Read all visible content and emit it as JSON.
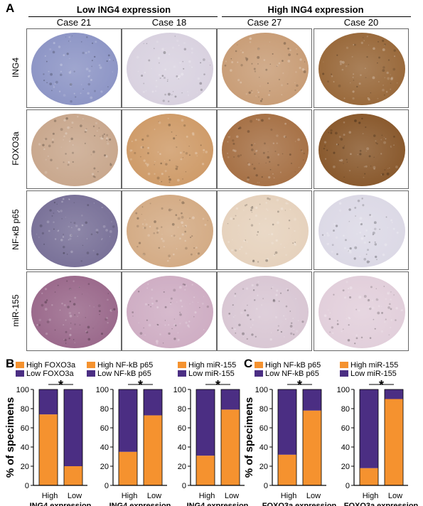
{
  "panel_a": {
    "label": "A",
    "groups": [
      "Low ING4 expression",
      "High ING4 expression"
    ],
    "cases": [
      "Case 21",
      "Case 18",
      "Case 27",
      "Case 20"
    ],
    "rows": [
      "ING4",
      "FOXO3a",
      "NF-κB p65",
      "miR-155"
    ],
    "tissue_colors": [
      [
        "#8e96c6",
        "#d9d2e0",
        "#c99e78",
        "#9a6a3c"
      ],
      [
        "#c9a88e",
        "#cf9c6a",
        "#a77247",
        "#8a5a2e"
      ],
      [
        "#7a7299",
        "#d4ac86",
        "#e6d2bd",
        "#dcd9e6"
      ],
      [
        "#9b6a8c",
        "#cfaec4",
        "#d9c7d4",
        "#e2cfdb"
      ]
    ]
  },
  "panel_b_label": "B",
  "panel_c_label": "C",
  "colors": {
    "high": "#f5922f",
    "low": "#4b2e83"
  },
  "chart_data": [
    {
      "type": "bar",
      "stacked": true,
      "categories": [
        "High",
        "Low"
      ],
      "xlabel": "ING4 expression",
      "ylabel": "% of specimens",
      "ylim": [
        0,
        100
      ],
      "significance": "*",
      "series": [
        {
          "name": "High FOXO3a",
          "values": [
            74,
            20
          ]
        },
        {
          "name": "Low FOXO3a",
          "values": [
            26,
            80
          ]
        }
      ]
    },
    {
      "type": "bar",
      "stacked": true,
      "categories": [
        "High",
        "Low"
      ],
      "xlabel": "ING4 expression",
      "ylabel": "",
      "ylim": [
        0,
        100
      ],
      "significance": "*",
      "series": [
        {
          "name": "High NF-kB p65",
          "values": [
            35,
            73
          ]
        },
        {
          "name": "Low NF-kB p65",
          "values": [
            65,
            27
          ]
        }
      ]
    },
    {
      "type": "bar",
      "stacked": true,
      "categories": [
        "High",
        "Low"
      ],
      "xlabel": "ING4 expression",
      "ylabel": "",
      "ylim": [
        0,
        100
      ],
      "significance": "*",
      "series": [
        {
          "name": "High miR-155",
          "values": [
            31,
            79
          ]
        },
        {
          "name": "Low miR-155",
          "values": [
            69,
            21
          ]
        }
      ]
    },
    {
      "type": "bar",
      "stacked": true,
      "categories": [
        "High",
        "Low"
      ],
      "xlabel": "FOXO3a expression",
      "ylabel": "% of specimens",
      "ylim": [
        0,
        100
      ],
      "significance": "*",
      "series": [
        {
          "name": "High NF-kB p65",
          "values": [
            32,
            78
          ]
        },
        {
          "name": "Low NF-kB p65",
          "values": [
            68,
            22
          ]
        }
      ]
    },
    {
      "type": "bar",
      "stacked": true,
      "categories": [
        "High",
        "Low"
      ],
      "xlabel": "FOXO3a expression",
      "ylabel": "",
      "ylim": [
        0,
        100
      ],
      "significance": "*",
      "series": [
        {
          "name": "High miR-155",
          "values": [
            18,
            90
          ]
        },
        {
          "name": "Low miR-155",
          "values": [
            82,
            10
          ]
        }
      ]
    }
  ]
}
